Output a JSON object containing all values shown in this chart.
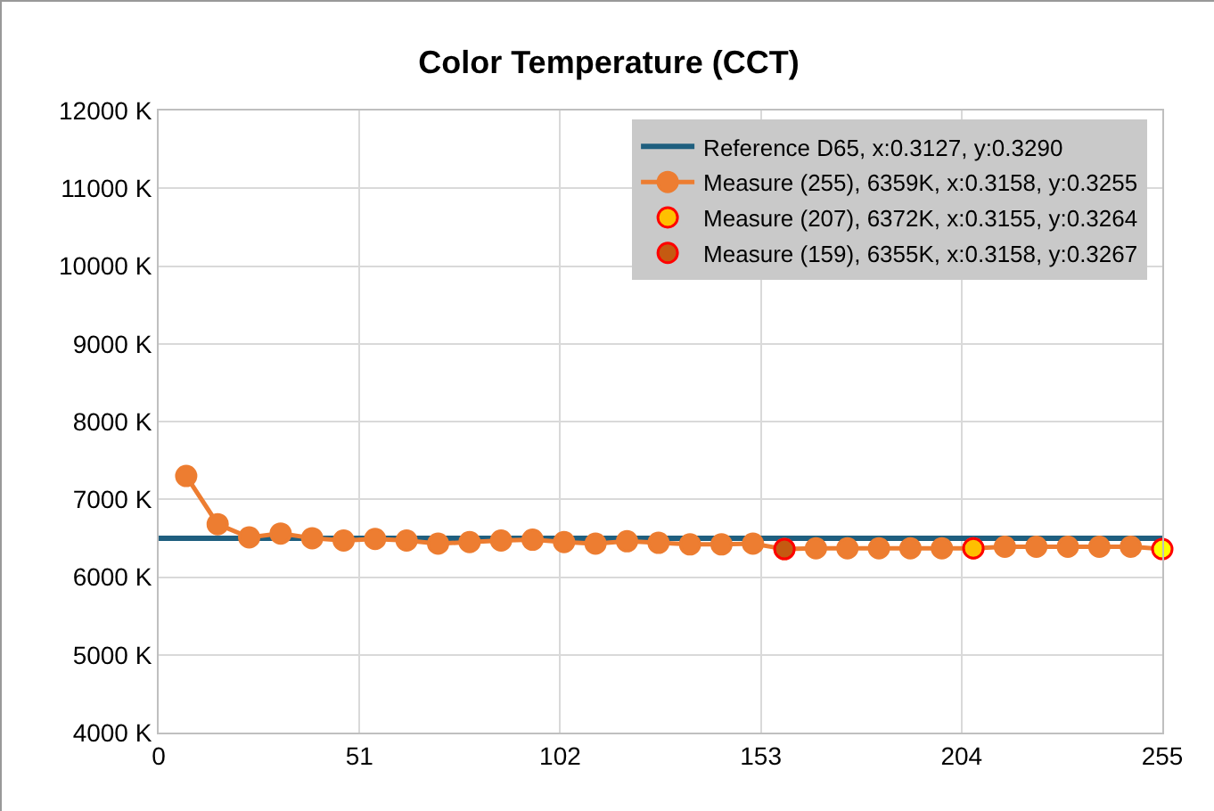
{
  "chart_data": {
    "type": "line",
    "title": "Color Temperature (CCT)",
    "xlim": [
      0,
      255
    ],
    "xticks": [
      0,
      51,
      102,
      153,
      204,
      255
    ],
    "ylim": [
      4000,
      12000
    ],
    "yticks": [
      {
        "value": 4000,
        "label": "4000 K"
      },
      {
        "value": 5000,
        "label": "5000 K"
      },
      {
        "value": 6000,
        "label": "6000 K"
      },
      {
        "value": 7000,
        "label": "7000 K"
      },
      {
        "value": 8000,
        "label": "8000 K"
      },
      {
        "value": 9000,
        "label": "9000 K"
      },
      {
        "value": 10000,
        "label": "10000 K"
      },
      {
        "value": 11000,
        "label": "11000 K"
      },
      {
        "value": 12000,
        "label": "12000 K"
      }
    ],
    "grid": true,
    "legend": "top right",
    "marker": "circle",
    "line_style": "solid",
    "series": [
      {
        "name": "Reference D65, x:0.3127, y:0.3290",
        "type": "line",
        "color": "#1f5f7f",
        "marker": "none",
        "x": [
          0,
          255
        ],
        "values": [
          6500,
          6500
        ]
      },
      {
        "name": "Measure (255), 6359K, x:0.3158, y:0.3255",
        "color": "#ed7d31",
        "x": [
          7,
          15,
          23,
          31,
          39,
          47,
          55,
          63,
          71,
          79,
          87,
          95,
          103,
          111,
          119,
          127,
          135,
          143,
          151,
          159,
          167,
          175,
          183,
          191,
          199,
          207,
          215,
          223,
          231,
          239,
          247,
          255
        ],
        "values": [
          7300,
          6680,
          6510,
          6560,
          6500,
          6470,
          6490,
          6470,
          6430,
          6450,
          6470,
          6480,
          6450,
          6430,
          6460,
          6440,
          6420,
          6420,
          6430,
          6360,
          6370,
          6370,
          6370,
          6370,
          6370,
          6370,
          6390,
          6390,
          6390,
          6390,
          6390,
          6360
        ],
        "colors": [
          "#ed7d31",
          "#ed7d31",
          "#ed7d31",
          "#ed7d31",
          "#ed7d31",
          "#ed7d31",
          "#ed7d31",
          "#ed7d31",
          "#ed7d31",
          "#ed7d31",
          "#ed7d31",
          "#ed7d31",
          "#ed7d31",
          "#ed7d31",
          "#ed7d31",
          "#ed7d31",
          "#ed7d31",
          "#ed7d31",
          "#ed7d31",
          "#ed7d31",
          "#ed7d31",
          "#ed7d31",
          "#ed7d31",
          "#ed7d31",
          "#ed7d31",
          "#ed7d31",
          "#ed7d31",
          "#ed7d31",
          "#ed7d31",
          "#ed7d31",
          "#ed7d31",
          "#ffff00"
        ]
      },
      {
        "name": "Measure (207), 6372K, x:0.3155, y:0.3264",
        "type": "scatter",
        "color": "#ffc000",
        "x": [
          207
        ],
        "values": [
          6370
        ]
      },
      {
        "name": "Measure (159), 6355K, x:0.3158, y:0.3267",
        "type": "scatter",
        "color": "#c55a11",
        "x": [
          159
        ],
        "values": [
          6360
        ]
      }
    ]
  }
}
